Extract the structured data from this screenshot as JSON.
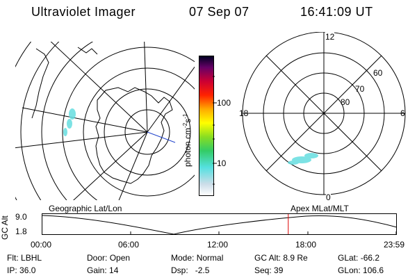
{
  "header": {
    "title": "Ultraviolet Imager",
    "date": "07 Sep 07",
    "time": "16:41:09 UT"
  },
  "colorbar": {
    "label": "photon cm",
    "label_exp": "-2",
    "label_rest": "s",
    "label_exp2": "-1",
    "tick_high": "100",
    "tick_low": "10"
  },
  "polar_plot": {
    "mlt_labels": {
      "top": "12",
      "left": "18",
      "right": "6",
      "bottom": "0"
    },
    "lat_labels": [
      "60",
      "70",
      "80"
    ]
  },
  "timeline": {
    "left_caption": "Geographic Lat/Lon",
    "right_caption": "Apex  MLat/MLT",
    "axis_title": "GC Alt",
    "y_high": "9.0",
    "y_low": "1.8",
    "time_ticks": [
      "00:00",
      "06:00",
      "12:00",
      "18:00",
      "23:59"
    ],
    "current_time_fraction": 0.695
  },
  "info": {
    "row1": [
      {
        "key": "Flt:",
        "val": "LBHL"
      },
      {
        "key": "Door:",
        "val": "Open"
      },
      {
        "key": "Mode:",
        "val": "Normal"
      },
      {
        "key": "GC Alt:",
        "val": "8.9 Re"
      },
      {
        "key": "GLat:",
        "val": "-66.2"
      }
    ],
    "row2": [
      {
        "key": "IP:",
        "val": "36.0"
      },
      {
        "key": "Gain:",
        "val": "14"
      },
      {
        "key": "Dsp:",
        "val": "  -2.5"
      },
      {
        "key": "Seq:",
        "val": "39"
      },
      {
        "key": "GLon:",
        "val": "106.6"
      }
    ]
  },
  "colors": {
    "aurora": "#66dde0",
    "marker": "#dd0000",
    "pole_line": "#2244cc"
  }
}
